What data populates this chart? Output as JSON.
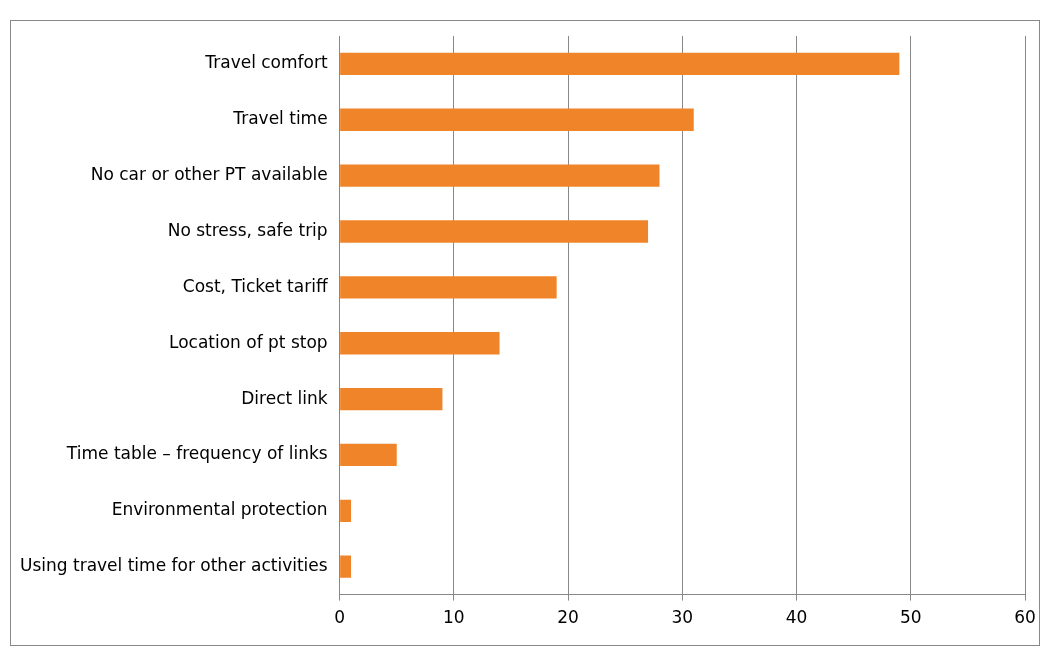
{
  "chart_data": {
    "type": "bar",
    "orientation": "horizontal",
    "categories": [
      "Travel comfort",
      "Travel time",
      "No car or other PT available",
      "No stress, safe trip",
      "Cost, Ticket tariff",
      "Location of pt stop",
      "Direct link",
      "Time table – frequency of links",
      "Environmental protection",
      "Using travel time for other activities"
    ],
    "values": [
      49,
      31,
      28,
      27,
      19,
      14,
      9,
      5,
      1,
      1
    ],
    "color": "#f08428",
    "xlim": [
      0,
      60
    ],
    "xticks": [
      0,
      10,
      20,
      30,
      40,
      50,
      60
    ],
    "grid": "x",
    "legend": false
  }
}
